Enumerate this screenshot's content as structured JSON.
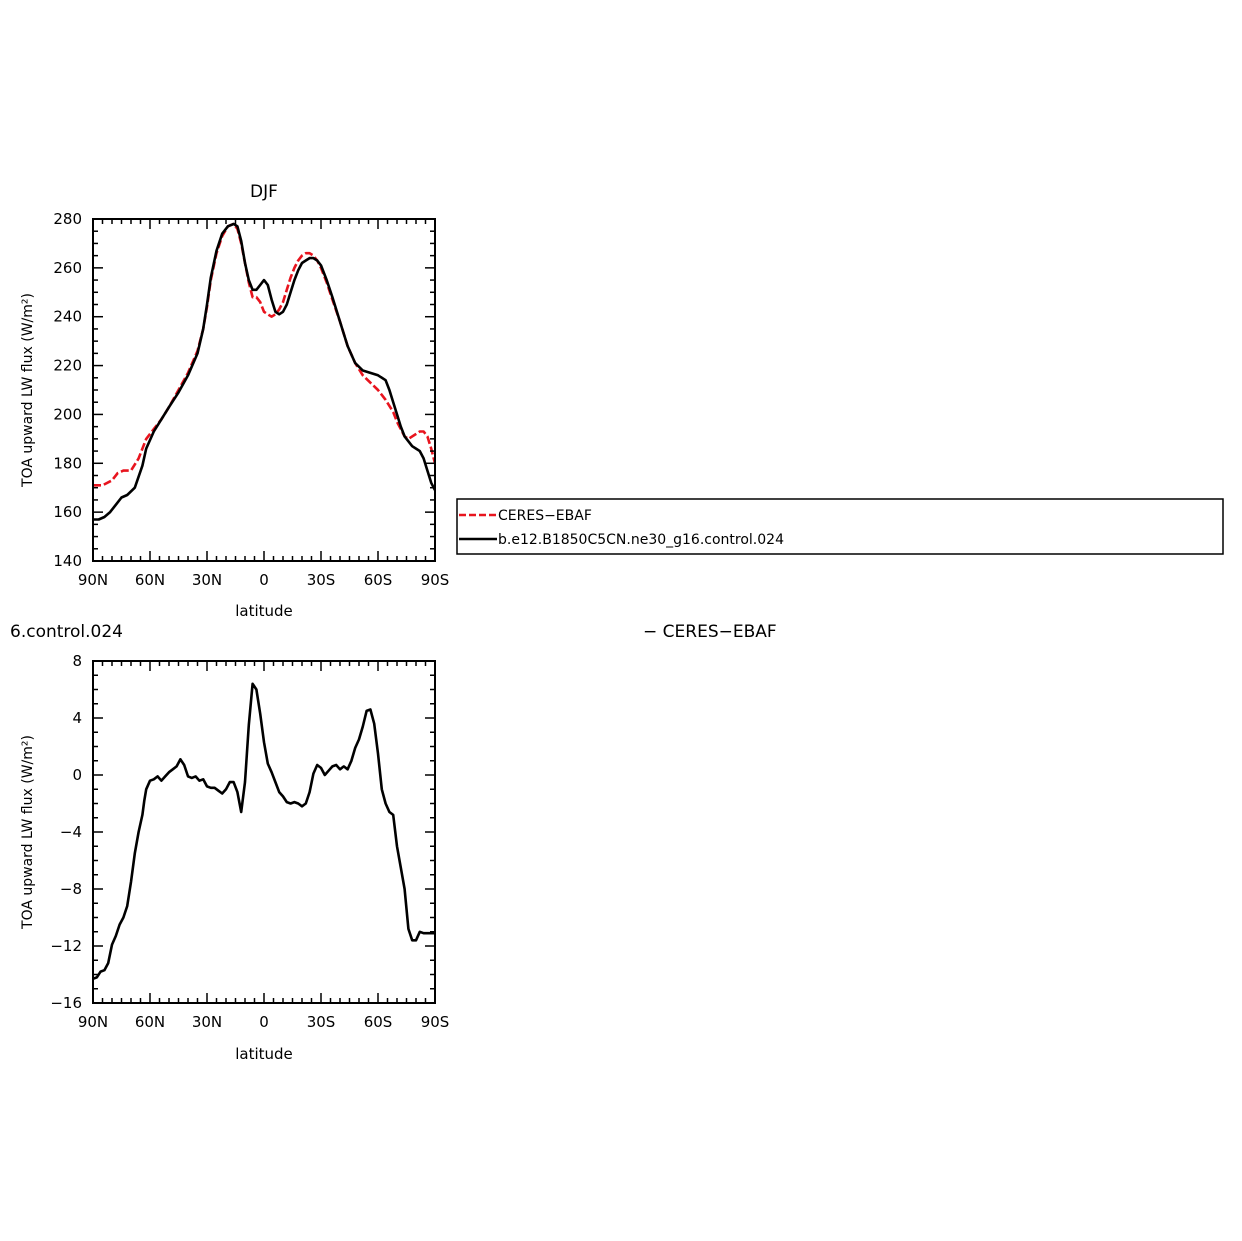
{
  "chart_data": [
    {
      "type": "line",
      "title": "DJF",
      "xlabel": "latitude",
      "ylabel": "TOA upward LW flux (W/m²)",
      "xlim": [
        90,
        -90
      ],
      "ylim": [
        140,
        280
      ],
      "x_ticks": [
        {
          "value": 90,
          "label": "90N"
        },
        {
          "value": 60,
          "label": "60N"
        },
        {
          "value": 30,
          "label": "30N"
        },
        {
          "value": 0,
          "label": "0"
        },
        {
          "value": -30,
          "label": "30S"
        },
        {
          "value": -60,
          "label": "60S"
        },
        {
          "value": -90,
          "label": "90S"
        }
      ],
      "y_ticks": [
        140,
        160,
        180,
        200,
        220,
        240,
        260,
        280
      ],
      "legend_position": "right",
      "series": [
        {
          "name": "CERES−EBAF",
          "color": "#e8141e",
          "dashed": true,
          "x": [
            90,
            85,
            80,
            77,
            74,
            70,
            66,
            62,
            58,
            54,
            50,
            45,
            40,
            35,
            32,
            30,
            28,
            25,
            22,
            19,
            16,
            14,
            12,
            10,
            8,
            6,
            4,
            2,
            0,
            -2,
            -4,
            -6,
            -8,
            -10,
            -12,
            -14,
            -16,
            -18,
            -20,
            -22,
            -24,
            -26,
            -28,
            -30,
            -33,
            -36,
            -40,
            -44,
            -48,
            -52,
            -56,
            -60,
            -64,
            -68,
            -70,
            -72,
            -74,
            -76,
            -78,
            -80,
            -82,
            -84,
            -86,
            -88,
            -90
          ],
          "y": [
            171,
            171,
            173,
            176,
            177,
            177,
            182,
            190,
            194,
            198,
            203,
            210,
            217,
            226,
            235,
            244,
            255,
            266,
            273,
            277,
            278,
            276,
            270,
            262,
            254,
            248,
            248,
            246,
            242,
            241,
            240,
            241,
            243,
            246,
            251,
            256,
            260,
            263,
            265,
            266,
            266,
            265,
            263,
            260,
            254,
            247,
            238,
            228,
            221,
            216,
            213,
            210,
            206,
            201,
            197,
            194,
            191,
            190,
            191,
            192,
            193,
            193,
            191,
            186,
            180
          ]
        },
        {
          "name": "b.e12.B1850C5CN.ne30_g16.control.024",
          "color": "#000000",
          "dashed": false,
          "x": [
            90,
            87,
            84,
            81,
            78,
            75,
            72,
            68,
            64,
            62,
            58,
            54,
            50,
            45,
            40,
            35,
            32,
            30,
            28,
            25,
            22,
            19,
            16,
            14,
            12,
            10,
            8,
            6,
            4,
            2,
            0,
            -2,
            -4,
            -6,
            -8,
            -10,
            -12,
            -14,
            -16,
            -18,
            -20,
            -22,
            -24,
            -26,
            -28,
            -30,
            -33,
            -36,
            -40,
            -44,
            -48,
            -52,
            -56,
            -60,
            -64,
            -66,
            -68,
            -70,
            -72,
            -74,
            -76,
            -78,
            -80,
            -82,
            -84,
            -86,
            -88,
            -90
          ],
          "y": [
            157,
            157,
            158,
            160,
            163,
            166,
            167,
            170,
            179,
            186,
            193,
            198,
            203,
            209,
            216,
            225,
            235,
            245,
            256,
            267,
            274,
            277,
            278,
            277,
            271,
            262,
            255,
            251,
            251,
            253,
            255,
            253,
            247,
            242,
            241,
            242,
            245,
            250,
            255,
            259,
            262,
            263,
            264,
            264,
            263,
            261,
            255,
            248,
            238,
            228,
            221,
            218,
            217,
            216,
            214,
            210,
            205,
            200,
            195,
            191,
            189,
            187,
            186,
            185,
            182,
            177,
            172,
            169
          ]
        }
      ]
    },
    {
      "type": "line",
      "title_left": "6.control.024",
      "title_right": "− CERES−EBAF",
      "xlabel": "latitude",
      "ylabel": "TOA upward LW flux (W/m²)",
      "xlim": [
        90,
        -90
      ],
      "ylim": [
        -16,
        8
      ],
      "x_ticks": [
        {
          "value": 90,
          "label": "90N"
        },
        {
          "value": 60,
          "label": "60N"
        },
        {
          "value": 30,
          "label": "30N"
        },
        {
          "value": 0,
          "label": "0"
        },
        {
          "value": -30,
          "label": "30S"
        },
        {
          "value": -60,
          "label": "60S"
        },
        {
          "value": -90,
          "label": "90S"
        }
      ],
      "y_ticks": [
        -16,
        -12,
        -8,
        -4,
        0,
        4,
        8
      ],
      "series": [
        {
          "color": "#000000",
          "dashed": false,
          "x": [
            90,
            88,
            86,
            84,
            82,
            80,
            78,
            76,
            74,
            72,
            70,
            68,
            66,
            64,
            63,
            62,
            60,
            58,
            56,
            54,
            52,
            50,
            48,
            46,
            44,
            42,
            40,
            38,
            36,
            34,
            32,
            30,
            28,
            26,
            24,
            22,
            20,
            18,
            16,
            14,
            12,
            10,
            9,
            8,
            6,
            4,
            2,
            0,
            -2,
            -4,
            -6,
            -8,
            -10,
            -12,
            -14,
            -16,
            -18,
            -20,
            -22,
            -24,
            -26,
            -28,
            -30,
            -32,
            -34,
            -36,
            -38,
            -40,
            -42,
            -44,
            -46,
            -48,
            -50,
            -52,
            -54,
            -56,
            -58,
            -60,
            -62,
            -64,
            -66,
            -68,
            -70,
            -72,
            -74,
            -76,
            -78,
            -80,
            -82,
            -84,
            -86,
            -88,
            -90
          ],
          "y": [
            -14.3,
            -14.2,
            -13.8,
            -13.7,
            -13.2,
            -11.9,
            -11.3,
            -10.5,
            -10.0,
            -9.2,
            -7.5,
            -5.5,
            -4.0,
            -2.8,
            -1.8,
            -1.0,
            -0.4,
            -0.3,
            -0.1,
            -0.4,
            -0.1,
            0.2,
            0.4,
            0.6,
            1.1,
            0.7,
            -0.1,
            -0.2,
            -0.1,
            -0.4,
            -0.3,
            -0.8,
            -0.9,
            -0.9,
            -1.1,
            -1.3,
            -1.0,
            -0.5,
            -0.5,
            -1.2,
            -2.6,
            -0.5,
            1.5,
            3.5,
            6.4,
            6.0,
            4.3,
            2.3,
            0.8,
            0.2,
            -0.5,
            -1.2,
            -1.5,
            -1.9,
            -2.0,
            -1.9,
            -2.0,
            -2.2,
            -2.0,
            -1.2,
            0.1,
            0.7,
            0.5,
            0.0,
            0.3,
            0.6,
            0.7,
            0.4,
            0.6,
            0.4,
            1.0,
            1.9,
            2.5,
            3.4,
            4.5,
            4.6,
            3.6,
            1.5,
            -1.0,
            -2.0,
            -2.6,
            -2.8,
            -5.0,
            -6.5,
            -8.0,
            -10.8,
            -11.6,
            -11.6,
            -11.0,
            -11.1,
            -11.1,
            -11.1,
            -11.1
          ]
        }
      ]
    }
  ]
}
